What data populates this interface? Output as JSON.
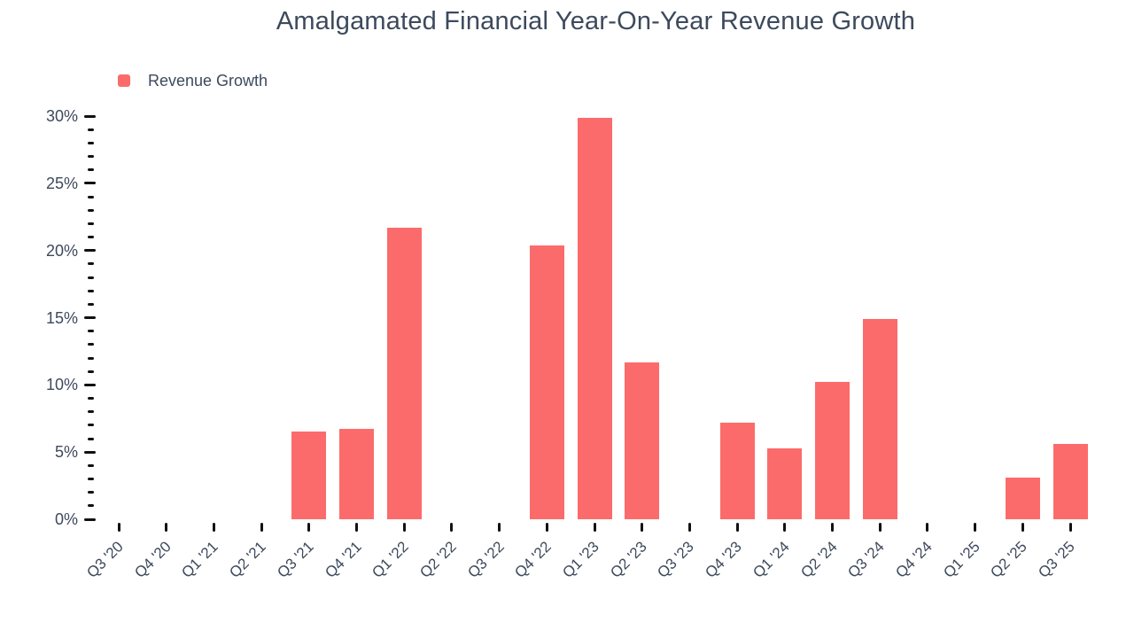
{
  "title": "Amalgamated Financial Year-On-Year Revenue Growth",
  "legend": {
    "label": "Revenue Growth",
    "swatch_color": "#fc6b6b"
  },
  "colors": {
    "bar": "#fc6b6b",
    "text": "#3d495c",
    "tick": "#111111",
    "background": "#ffffff"
  },
  "chart_data": {
    "type": "bar",
    "title": "Amalgamated Financial Year-On-Year Revenue Growth",
    "xlabel": "",
    "ylabel": "",
    "ylim": [
      0,
      30
    ],
    "y_unit": "%",
    "y_major_step": 5,
    "y_minor_step": 1,
    "y_major_tick_labels": [
      "0%",
      "5%",
      "10%",
      "15%",
      "20%",
      "25%",
      "30%"
    ],
    "grid": false,
    "legend_position": "top-left",
    "categories": [
      "Q3 '20",
      "Q4 '20",
      "Q1 '21",
      "Q2 '21",
      "Q3 '21",
      "Q4 '21",
      "Q1 '22",
      "Q2 '22",
      "Q3 '22",
      "Q4 '22",
      "Q1 '23",
      "Q2 '23",
      "Q3 '23",
      "Q4 '23",
      "Q1 '24",
      "Q2 '24",
      "Q3 '24",
      "Q4 '24",
      "Q1 '25",
      "Q2 '25",
      "Q3 '25"
    ],
    "series": [
      {
        "name": "Revenue Growth",
        "color": "#fc6b6b",
        "values": [
          null,
          null,
          null,
          null,
          6.5,
          6.7,
          21.7,
          null,
          null,
          20.4,
          29.9,
          11.7,
          null,
          7.2,
          5.3,
          10.2,
          14.9,
          null,
          null,
          3.1,
          5.6
        ]
      }
    ]
  }
}
